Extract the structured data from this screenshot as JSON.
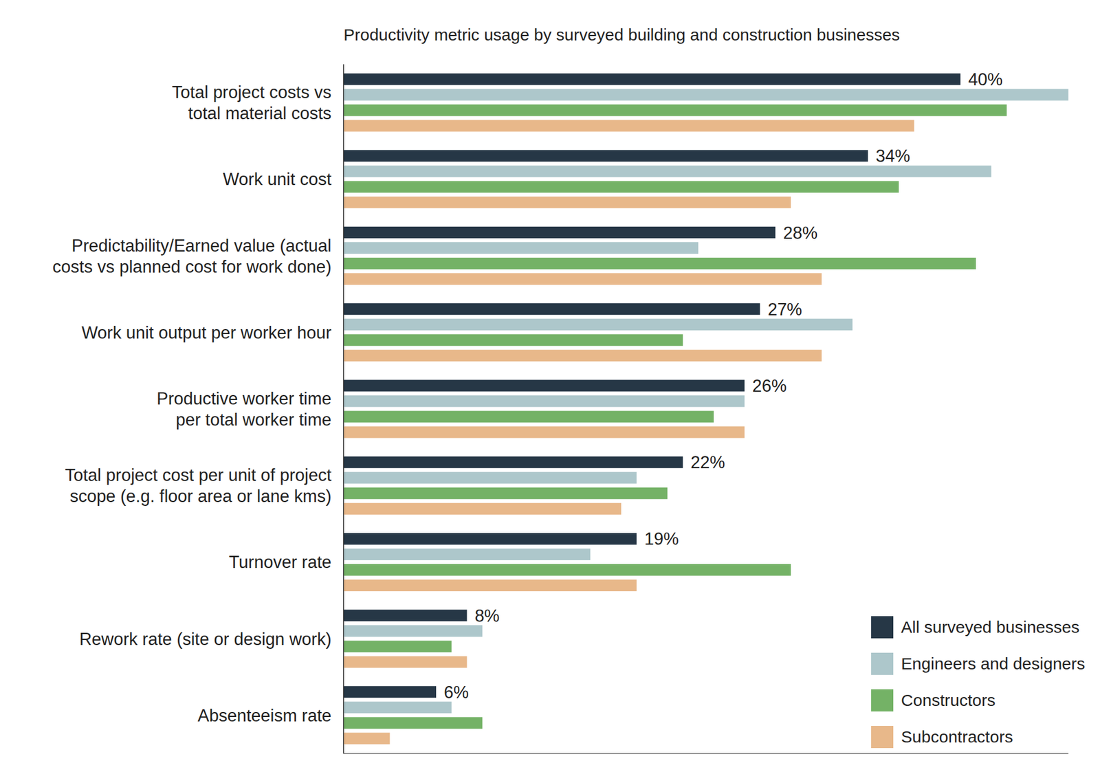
{
  "chart_data": {
    "type": "bar",
    "title": "Productivity metric usage by surveyed building and construction businesses",
    "orientation": "horizontal",
    "categories": [
      "Total project costs vs\ntotal material costs",
      "Work unit cost",
      "Predictability/Earned value (actual\ncosts vs planned cost for work done)",
      "Work unit output per worker hour",
      "Productive worker time\nper total worker time",
      "Total project cost per unit of project\nscope (e.g. floor area or lane kms)",
      "Turnover rate",
      "Rework rate (site or design work)",
      "Absenteeism rate"
    ],
    "series": [
      {
        "name": "All surveyed businesses",
        "color": "#263746",
        "values": [
          40,
          34,
          28,
          27,
          26,
          22,
          19,
          8,
          6
        ],
        "data_labels": true,
        "value_labels": [
          "40%",
          "34%",
          "28%",
          "27%",
          "26%",
          "22%",
          "19%",
          "8%",
          "6%"
        ]
      },
      {
        "name": "Engineers and designers",
        "color": "#adc7cb",
        "values": [
          47,
          42,
          23,
          33,
          26,
          19,
          16,
          9,
          7
        ]
      },
      {
        "name": "Constructors",
        "color": "#74b266",
        "values": [
          43,
          36,
          41,
          22,
          24,
          21,
          29,
          7,
          9
        ]
      },
      {
        "name": "Subcontractors",
        "color": "#e8b88a",
        "values": [
          37,
          29,
          31,
          31,
          26,
          18,
          19,
          8,
          3
        ]
      }
    ],
    "xlim": [
      0,
      47
    ],
    "grid": false,
    "legend": "lower right",
    "tick_labels": "y"
  }
}
